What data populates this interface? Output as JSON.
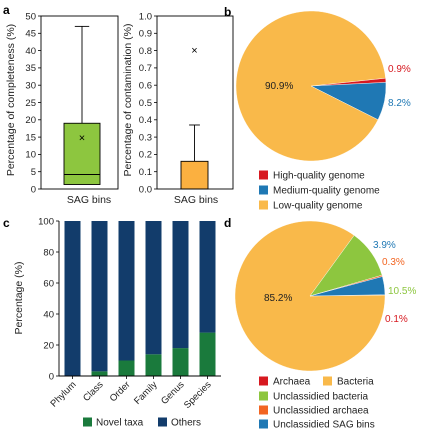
{
  "panel_labels": {
    "a": "a",
    "b": "b",
    "c": "c",
    "d": "d"
  },
  "chart_data": [
    {
      "id": "a_left",
      "type": "box",
      "ylabel": "Percentage of completeness (%)",
      "xlabel": "SAG bins",
      "ylim": [
        0,
        50
      ],
      "yticks": [
        "0",
        "5",
        "10",
        "15",
        "20",
        "25",
        "30",
        "35",
        "40",
        "45",
        "50"
      ],
      "box": {
        "min": 0.3,
        "q1": 1.3,
        "median": 4.2,
        "q3": 19.0,
        "max": 47.0,
        "mean": 14.7,
        "mean_marker": "×"
      },
      "color": "#8dc63f"
    },
    {
      "id": "a_right",
      "type": "box",
      "ylabel": "Percentage of contamination (%)",
      "xlabel": "SAG bins",
      "ylim": [
        0,
        1.0
      ],
      "yticks": [
        "0.0",
        "0.1",
        "0.2",
        "0.3",
        "0.4",
        "0.5",
        "0.6",
        "0.7",
        "0.8",
        "0.9",
        "1.0"
      ],
      "box": {
        "min": 0.0,
        "q1": 0.0,
        "median": 0.0,
        "q3": 0.16,
        "max": 0.37,
        "outlier": 0.8,
        "outlier_marker": "×"
      },
      "color": "#fbb040"
    },
    {
      "id": "b",
      "type": "pie",
      "slices": [
        {
          "label": "High-quality genome",
          "value": 0.9,
          "text": "0.9%",
          "color": "#d71920",
          "label_color": "#d71920"
        },
        {
          "label": "Medium-quality genome",
          "value": 8.2,
          "text": "8.2%",
          "color": "#1f78b4",
          "label_color": "#1f78b4"
        },
        {
          "label": "Low-quality genome",
          "value": 90.9,
          "text": "90.9%",
          "color": "#f9b94a",
          "label_color": "#222222"
        }
      ],
      "legend": [
        "High-quality genome",
        "Medium-quality genome",
        "Low-quality genome"
      ],
      "legend_position": "bottom-left"
    },
    {
      "id": "c",
      "type": "bar",
      "stacked": true,
      "ylabel": "Percentage (%)",
      "ylim": [
        0,
        100
      ],
      "yticks": [
        "0",
        "20",
        "40",
        "60",
        "80",
        "100"
      ],
      "categories": [
        "Phylum",
        "Class",
        "Order",
        "Family",
        "Genus",
        "Species"
      ],
      "series": [
        {
          "name": "Novel taxa",
          "values": [
            0,
            3,
            10,
            14,
            18,
            28
          ],
          "color": "#1a7a3c"
        },
        {
          "name": "Others",
          "values": [
            100,
            97,
            90,
            86,
            82,
            72
          ],
          "color": "#123c6b"
        }
      ],
      "legend_position": "bottom"
    },
    {
      "id": "d",
      "type": "pie",
      "slices": [
        {
          "label": "Archaea",
          "value": 0.1,
          "text": "0.1%",
          "color": "#d71920",
          "label_color": "#d71920"
        },
        {
          "label": "Bacteria",
          "value": 85.2,
          "text": "85.2%",
          "color": "#f9b94a",
          "label_color": "#222222"
        },
        {
          "label": "Unclassidied bacteria",
          "value": 10.5,
          "text": "10.5%",
          "color": "#8dc63f",
          "label_color": "#8dc63f"
        },
        {
          "label": "Unclassidied archaea",
          "value": 0.3,
          "text": "0.3%",
          "color": "#f26522",
          "label_color": "#f26522"
        },
        {
          "label": "Unclassidied SAG bins",
          "value": 3.9,
          "text": "3.9%",
          "color": "#1f78b4",
          "label_color": "#1f78b4"
        }
      ],
      "legend": [
        "Archaea",
        "Bacteria",
        "Unclassidied bacteria",
        "Unclassidied archaea",
        "Unclassidied SAG bins"
      ],
      "legend_position": "bottom-left"
    }
  ]
}
